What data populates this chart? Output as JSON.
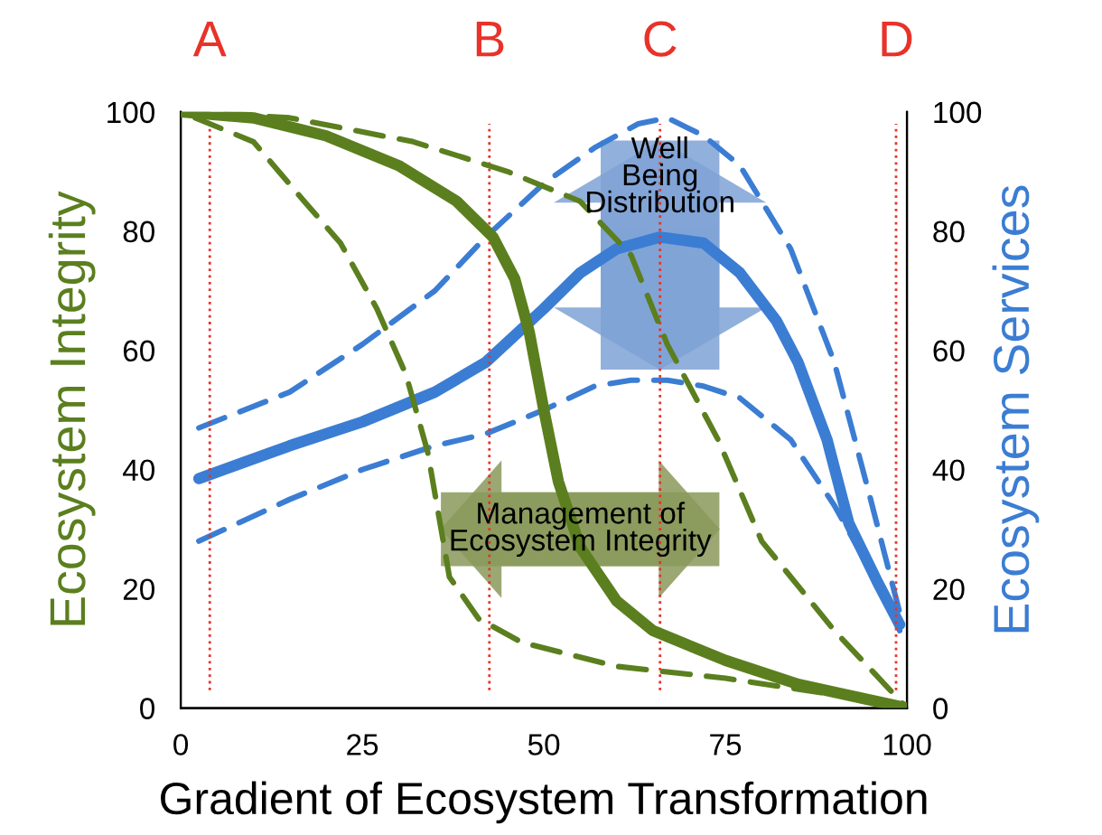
{
  "chart_data": {
    "type": "line",
    "xlabel": "Gradient of Ecosystem Transformation",
    "ylabel": "Ecosystem Integrity",
    "y2label": "Ecosystem Services",
    "xlim": [
      0,
      100
    ],
    "xticks": [
      0,
      25,
      50,
      75,
      100
    ],
    "ylim": [
      0,
      100
    ],
    "yticks": [
      0,
      20,
      40,
      60,
      80,
      100
    ],
    "y2lim": [
      0,
      100
    ],
    "y2ticks": [
      0,
      20,
      40,
      60,
      80,
      100
    ],
    "grid": false,
    "legend": false,
    "marker": "none",
    "series": [
      {
        "color": "#5b7f1f",
        "line_style": "solid",
        "x": [
          0,
          10,
          20,
          30,
          38,
          43,
          46,
          48,
          50,
          52,
          55,
          60,
          65,
          75,
          85,
          100
        ],
        "values": [
          100,
          99,
          96,
          91,
          85,
          79,
          72,
          63,
          50,
          38,
          27,
          18,
          13,
          8,
          4,
          0
        ]
      },
      {
        "color": "#5b7f1f",
        "line_style": "dashed",
        "x": [
          0,
          15,
          32,
          45,
          55,
          62,
          67,
          74,
          80,
          90,
          100
        ],
        "values": [
          100,
          99,
          95,
          90,
          85,
          76,
          61,
          45,
          28,
          13,
          0
        ]
      },
      {
        "color": "#5b7f1f",
        "line_style": "dashed",
        "x": [
          2,
          10,
          17,
          22,
          27,
          31,
          34,
          37,
          41,
          47,
          60,
          75,
          97
        ],
        "values": [
          99,
          95,
          85,
          78,
          67,
          56,
          43,
          22,
          15,
          11,
          7,
          5,
          1
        ]
      },
      {
        "color": "#3b7dd3",
        "line_style": "solid",
        "axis": "y2",
        "x": [
          2.5,
          15,
          25,
          35,
          42,
          50,
          55,
          60,
          66,
          72,
          77,
          82,
          85,
          89,
          92,
          96,
          99
        ],
        "values": [
          38.5,
          44,
          48,
          53,
          58,
          67,
          73,
          77,
          79,
          78,
          73,
          65,
          58,
          45,
          31,
          21,
          14
        ]
      },
      {
        "color": "#3b7dd3",
        "line_style": "dashed",
        "axis": "y2",
        "x": [
          2.5,
          15,
          25,
          35,
          42,
          50,
          57,
          63,
          67,
          72,
          77,
          84,
          90,
          95,
          99
        ],
        "values": [
          47,
          53,
          61,
          70,
          79,
          88,
          94,
          98,
          99,
          96,
          91,
          77,
          58,
          35,
          16
        ]
      },
      {
        "color": "#3b7dd3",
        "line_style": "dashed",
        "axis": "y2",
        "x": [
          2.5,
          15,
          25,
          35,
          42,
          50,
          57,
          62,
          67,
          72,
          77,
          84,
          90,
          95,
          99
        ],
        "values": [
          28,
          35,
          40,
          44,
          46,
          50,
          54,
          55,
          55,
          54,
          52,
          45,
          34,
          23,
          13
        ]
      }
    ],
    "ref_lines": [
      {
        "axis": "x",
        "value": 4,
        "label": "A",
        "color": "#e8322a",
        "line_style": "dotted"
      },
      {
        "axis": "x",
        "value": 42.5,
        "label": "B",
        "color": "#e8322a",
        "line_style": "dotted"
      },
      {
        "axis": "x",
        "value": 66,
        "label": "C",
        "color": "#e8322a",
        "line_style": "dotted"
      },
      {
        "axis": "x",
        "value": 98.5,
        "label": "D",
        "color": "#e8322a",
        "line_style": "dotted"
      }
    ],
    "annotations": [
      "Well\nBeing\nDistribution",
      "Management of\nEcosystem Integrity"
    ]
  }
}
